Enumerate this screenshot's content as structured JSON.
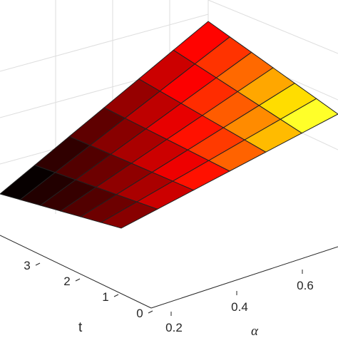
{
  "chart_data": {
    "type": "surface",
    "title": "",
    "x_axis": {
      "label": "α",
      "ticks": [
        "0.2",
        "0.4",
        "0.6"
      ]
    },
    "y_axis": {
      "label": "t",
      "ticks": [
        "0",
        "1",
        "2",
        "3"
      ]
    },
    "z_axis": {
      "label": "",
      "ticks": []
    },
    "grid": true,
    "colormap": "hot",
    "surface": {
      "rows": [
        [
          0.38,
          0.45,
          0.53,
          0.62,
          0.7,
          0.79
        ],
        [
          0.3,
          0.37,
          0.44,
          0.51,
          0.58,
          0.65
        ],
        [
          0.22,
          0.28,
          0.34,
          0.4,
          0.46,
          0.52
        ],
        [
          0.14,
          0.2,
          0.25,
          0.3,
          0.35,
          0.4
        ],
        [
          0.07,
          0.12,
          0.16,
          0.21,
          0.25,
          0.3
        ],
        [
          0.01,
          0.05,
          0.08,
          0.12,
          0.16,
          0.2
        ]
      ]
    }
  }
}
